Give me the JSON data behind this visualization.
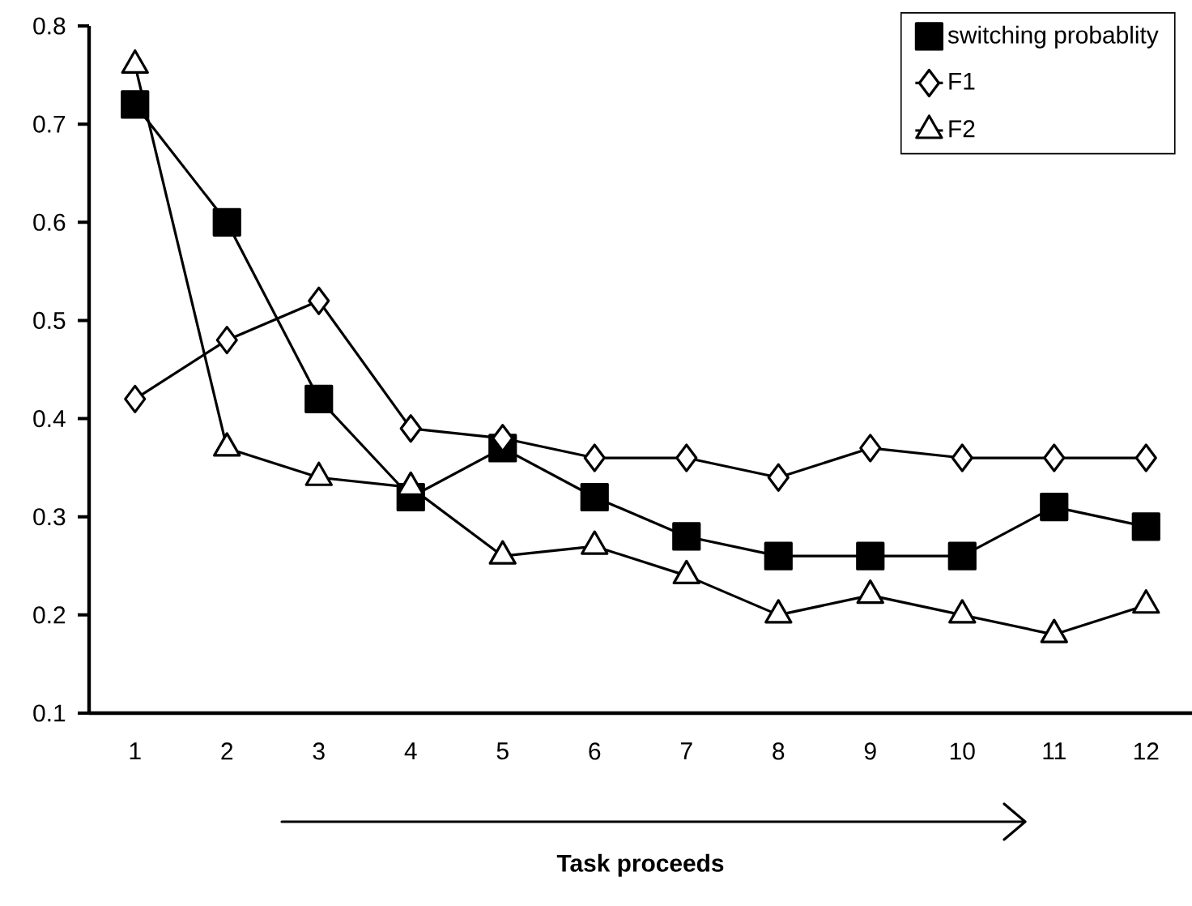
{
  "chart_data": {
    "type": "line",
    "xlabel": "Task proceeds",
    "categories": [
      "1",
      "2",
      "3",
      "4",
      "5",
      "6",
      "7",
      "8",
      "9",
      "10",
      "11",
      "12"
    ],
    "ylim": [
      0.1,
      0.8
    ],
    "yticks": [
      0.1,
      0.2,
      0.3,
      0.4,
      0.5,
      0.6,
      0.7,
      0.8
    ],
    "grid": false,
    "legend": "top right",
    "line_style": "solid",
    "series": [
      {
        "name": "switching probablity",
        "color": "#000000",
        "marker": "square",
        "values": [
          0.72,
          0.6,
          0.42,
          0.32,
          0.37,
          0.32,
          0.28,
          0.26,
          0.26,
          0.26,
          0.31,
          0.29
        ]
      },
      {
        "name": "F1",
        "color": "#000000",
        "marker": "diamond",
        "values": [
          0.42,
          0.48,
          0.52,
          0.39,
          0.38,
          0.36,
          0.36,
          0.34,
          0.37,
          0.36,
          0.36,
          0.36
        ]
      },
      {
        "name": "F2",
        "color": "#000000",
        "marker": "triangle",
        "values": [
          0.76,
          0.37,
          0.34,
          0.33,
          0.26,
          0.27,
          0.24,
          0.2,
          0.22,
          0.2,
          0.18,
          0.21
        ]
      }
    ]
  }
}
